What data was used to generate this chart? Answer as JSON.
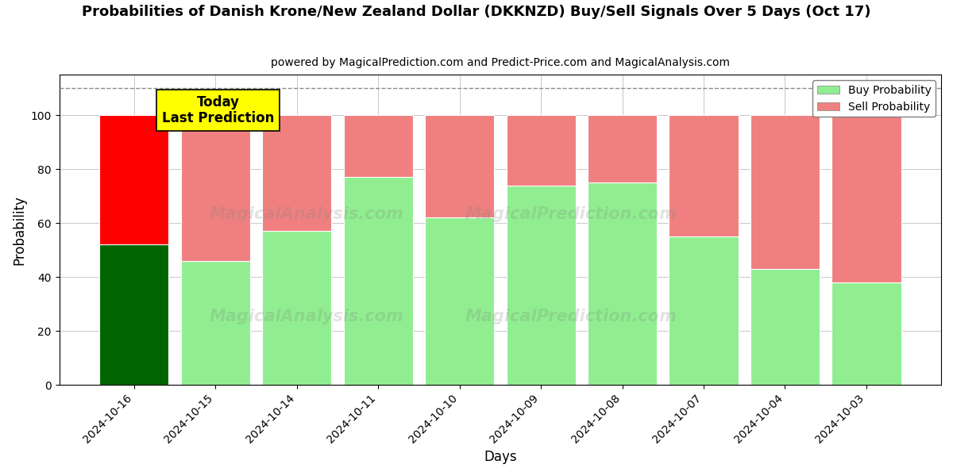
{
  "title": "Probabilities of Danish Krone/New Zealand Dollar (DKKNZD) Buy/Sell Signals Over 5 Days (Oct 17)",
  "subtitle": "powered by MagicalPrediction.com and Predict-Price.com and MagicalAnalysis.com",
  "xlabel": "Days",
  "ylabel": "Probability",
  "categories": [
    "2024-10-16",
    "2024-10-15",
    "2024-10-14",
    "2024-10-11",
    "2024-10-10",
    "2024-10-09",
    "2024-10-08",
    "2024-10-07",
    "2024-10-04",
    "2024-10-03"
  ],
  "buy_values": [
    52,
    46,
    57,
    77,
    62,
    74,
    75,
    55,
    43,
    38
  ],
  "sell_values": [
    48,
    54,
    43,
    23,
    38,
    26,
    25,
    45,
    57,
    62
  ],
  "today_bar_buy_color": "#006400",
  "today_bar_sell_color": "#FF0000",
  "other_bar_buy_color": "#90EE90",
  "other_bar_sell_color": "#F08080",
  "today_annotation_bg": "#FFFF00",
  "today_annotation_text": "Today\nLast Prediction",
  "dashed_line_y": 110,
  "ylim": [
    0,
    115
  ],
  "yticks": [
    0,
    20,
    40,
    60,
    80,
    100
  ],
  "legend_buy_label": "Buy Probability",
  "legend_sell_label": "Sell Probability",
  "figsize": [
    12.0,
    6.0
  ],
  "dpi": 100,
  "bar_width": 0.85,
  "bg_color": "#ffffff"
}
